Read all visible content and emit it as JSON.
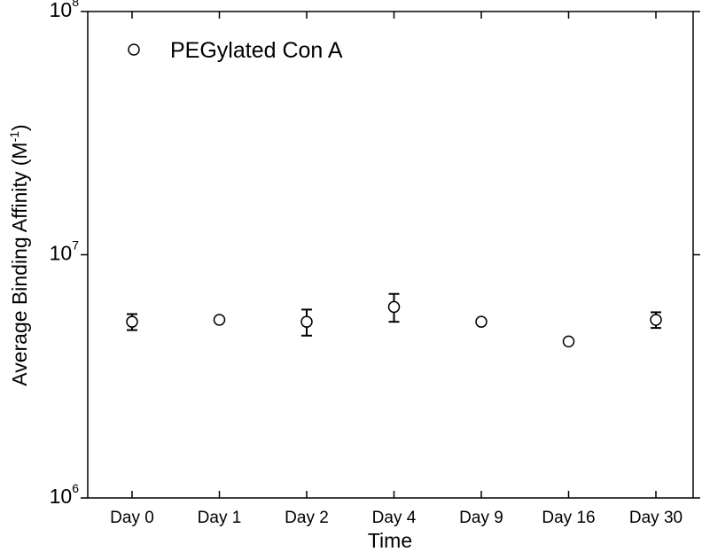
{
  "chart_data": {
    "type": "scatter",
    "xlabel": "Time",
    "ylabel": {
      "main": "Average Binding Affinity (M",
      "sup": "-1",
      "close": ")"
    },
    "categories": [
      "Day 0",
      "Day 1",
      "Day 2",
      "Day 4",
      "Day 9",
      "Day 16",
      "Day 30"
    ],
    "y_scale": "log",
    "ylim": [
      1000000,
      100000000
    ],
    "y_ticks": [
      {
        "value": 1000000,
        "base": "10",
        "exp": "6"
      },
      {
        "value": 10000000,
        "base": "10",
        "exp": "7"
      },
      {
        "value": 100000000,
        "base": "10",
        "exp": "8"
      }
    ],
    "legend": {
      "label": "PEGylated Con A",
      "position": "top-left"
    },
    "series": [
      {
        "name": "PEGylated Con A",
        "values": [
          5300000,
          5400000,
          5300000,
          6100000,
          5300000,
          4400000,
          5400000
        ],
        "errors": [
          400000,
          0,
          650000,
          800000,
          0,
          0,
          400000
        ]
      }
    ],
    "grid": false
  }
}
